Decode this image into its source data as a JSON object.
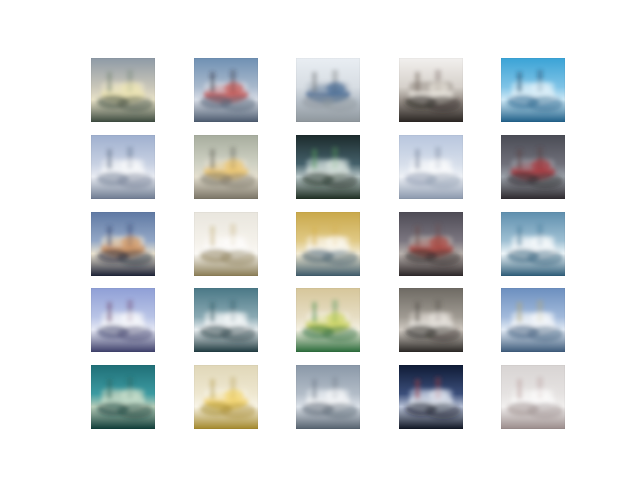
{
  "figure": {
    "rows": 5,
    "cols": 5,
    "tiles": [
      {
        "id": "r1c1",
        "sky": "#8e9aa6",
        "top": "#c9c6b9",
        "mid": "#e8e2c8",
        "low": "#3c4a3f",
        "blob": "#f1e8b0",
        "accent": "#6a7f6c"
      },
      {
        "id": "r1c2",
        "sky": "#6f90b3",
        "top": "#a9b9cc",
        "mid": "#d8dde6",
        "low": "#4b5a6e",
        "blob": "#c9423a",
        "accent": "#2a2f3a"
      },
      {
        "id": "r1c3",
        "sky": "#e9eef3",
        "top": "#d7dde3",
        "mid": "#b9c2cb",
        "low": "#8e969c",
        "blob": "#2f5a8a",
        "accent": "#6b6f71"
      },
      {
        "id": "r1c4",
        "sky": "#f2f0ee",
        "top": "#d6d1cb",
        "mid": "#9a928b",
        "low": "#2a2522",
        "blob": "#f5f2ea",
        "accent": "#6a5d54"
      },
      {
        "id": "r1c5",
        "sky": "#3aa3d6",
        "top": "#7fc3e6",
        "mid": "#cfe9f6",
        "low": "#1f5f88",
        "blob": "#e9f5fb",
        "accent": "#103a59"
      },
      {
        "id": "r2c1",
        "sky": "#9fb0cf",
        "top": "#c7d0e2",
        "mid": "#e9ecf2",
        "low": "#6e7b91",
        "blob": "#ffffff",
        "accent": "#51617a"
      },
      {
        "id": "r2c2",
        "sky": "#a7ad9e",
        "top": "#cfd1c3",
        "mid": "#e4dfcf",
        "low": "#7a7466",
        "blob": "#f2c35b",
        "accent": "#5a5a4e"
      },
      {
        "id": "r2c3",
        "sky": "#1c2b2c",
        "top": "#44606a",
        "mid": "#b9c7c8",
        "low": "#1e2e22",
        "blob": "#e8f0ea",
        "accent": "#58a35a"
      },
      {
        "id": "r2c4",
        "sky": "#b8c6de",
        "top": "#d6deea",
        "mid": "#eef1f6",
        "low": "#8b98ad",
        "blob": "#ffffff",
        "accent": "#6e7c93"
      },
      {
        "id": "r2c5",
        "sky": "#4a4c55",
        "top": "#6f6f79",
        "mid": "#9aa0a8",
        "low": "#2e2a2f",
        "blob": "#b3262b",
        "accent": "#5b3a3c"
      },
      {
        "id": "r3c1",
        "sky": "#5f79a3",
        "top": "#93a7c6",
        "mid": "#e9e2d0",
        "low": "#1d2236",
        "blob": "#d38a4a",
        "accent": "#2c3c66"
      },
      {
        "id": "r3c2",
        "sky": "#e9e6de",
        "top": "#f4f1ea",
        "mid": "#faf8f4",
        "low": "#8a7c54",
        "blob": "#ffffff",
        "accent": "#c6b27c"
      },
      {
        "id": "r3c3",
        "sky": "#c9a84a",
        "top": "#e0c985",
        "mid": "#f2ead2",
        "low": "#3e5a6a",
        "blob": "#ffffff",
        "accent": "#d7b24c"
      },
      {
        "id": "r3c4",
        "sky": "#4e4b55",
        "top": "#7b7680",
        "mid": "#b7b0ac",
        "low": "#2d2628",
        "blob": "#b0362f",
        "accent": "#6e4b48"
      },
      {
        "id": "r3c5",
        "sky": "#5f8fae",
        "top": "#9fc0d3",
        "mid": "#eef5f8",
        "low": "#2d5c78",
        "blob": "#ffffff",
        "accent": "#3f7393"
      },
      {
        "id": "r4c1",
        "sky": "#8f9fd6",
        "top": "#b9c4e6",
        "mid": "#e6e9f5",
        "low": "#3d3f6a",
        "blob": "#ffffff",
        "accent": "#6a3f64"
      },
      {
        "id": "r4c2",
        "sky": "#4a7886",
        "top": "#8aa9b3",
        "mid": "#e7ecee",
        "low": "#1f3a40",
        "blob": "#ffffff",
        "accent": "#2f5660"
      },
      {
        "id": "r4c3",
        "sky": "#d6c69a",
        "top": "#e6ddc3",
        "mid": "#f4f0e2",
        "low": "#2b6b3a",
        "blob": "#c7d14a",
        "accent": "#3d8a4a"
      },
      {
        "id": "r4c4",
        "sky": "#6e6a63",
        "top": "#9f9a92",
        "mid": "#cfc9c1",
        "low": "#2a2724",
        "blob": "#f2efe9",
        "accent": "#4c4741"
      },
      {
        "id": "r4c5",
        "sky": "#6c8fbf",
        "top": "#a2badb",
        "mid": "#e3ebf5",
        "low": "#3c5a7a",
        "blob": "#ffffff",
        "accent": "#b5a66c"
      },
      {
        "id": "r5c1",
        "sky": "#1f6f77",
        "top": "#3c9aa1",
        "mid": "#b7cdb9",
        "low": "#0f3c38",
        "blob": "#d6e7d2",
        "accent": "#2a5f57"
      },
      {
        "id": "r5c2",
        "sky": "#e0d7b8",
        "top": "#eee7d0",
        "mid": "#f8f4e7",
        "low": "#a3882b",
        "blob": "#f3cf55",
        "accent": "#b6a04f"
      },
      {
        "id": "r5c3",
        "sky": "#8a98a8",
        "top": "#b2bcc7",
        "mid": "#dde3ea",
        "low": "#55616e",
        "blob": "#ffffff",
        "accent": "#6c7886"
      },
      {
        "id": "r5c4",
        "sky": "#0f1b36",
        "top": "#3b4e7a",
        "mid": "#b9c3d8",
        "low": "#101624",
        "blob": "#f2f5fb",
        "accent": "#b23a3a"
      },
      {
        "id": "r5c5",
        "sky": "#d8d4d3",
        "top": "#e5e2e1",
        "mid": "#f1efee",
        "low": "#9a8c8b",
        "blob": "#ffffff",
        "accent": "#b79c9a"
      }
    ]
  }
}
